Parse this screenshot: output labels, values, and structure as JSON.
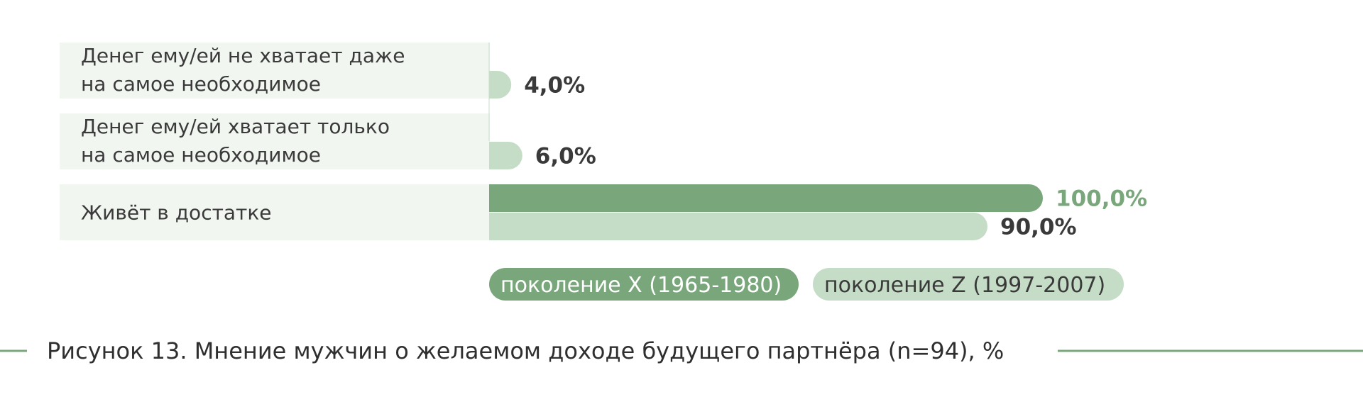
{
  "chart_data": {
    "type": "bar",
    "orientation": "horizontal",
    "categories": [
      [
        "Денег ему/ей не хватает даже",
        "на самое необходимое"
      ],
      [
        "Денег ему/ей хватает только",
        "на самое необходимое"
      ],
      [
        "Живёт в достатке"
      ]
    ],
    "series": [
      {
        "name": "поколение X (1965-1980)",
        "color": "#79a77b",
        "label_color": "#79a77b",
        "values": [
          null,
          null,
          100.0
        ],
        "value_labels": [
          "",
          "",
          "100,0%"
        ]
      },
      {
        "name": "поколение Z (1997-2007)",
        "color": "#c5ddc7",
        "label_color": "#3a3a3a",
        "values": [
          4.0,
          6.0,
          90.0
        ],
        "value_labels": [
          "4,0%",
          "6,0%",
          "90,0%"
        ]
      }
    ],
    "xlim": [
      0,
      100
    ],
    "grid": false,
    "legend_position": "bottom",
    "legend_text_colors": [
      "#ffffff",
      "#3a3a3a"
    ],
    "row_background_color": "#f1f6f1",
    "caption": "Рисунок 13. Мнение мужчин о желаемом доходе будущего партнёра (n=94), %",
    "caption_line_color": "#79a77b"
  }
}
